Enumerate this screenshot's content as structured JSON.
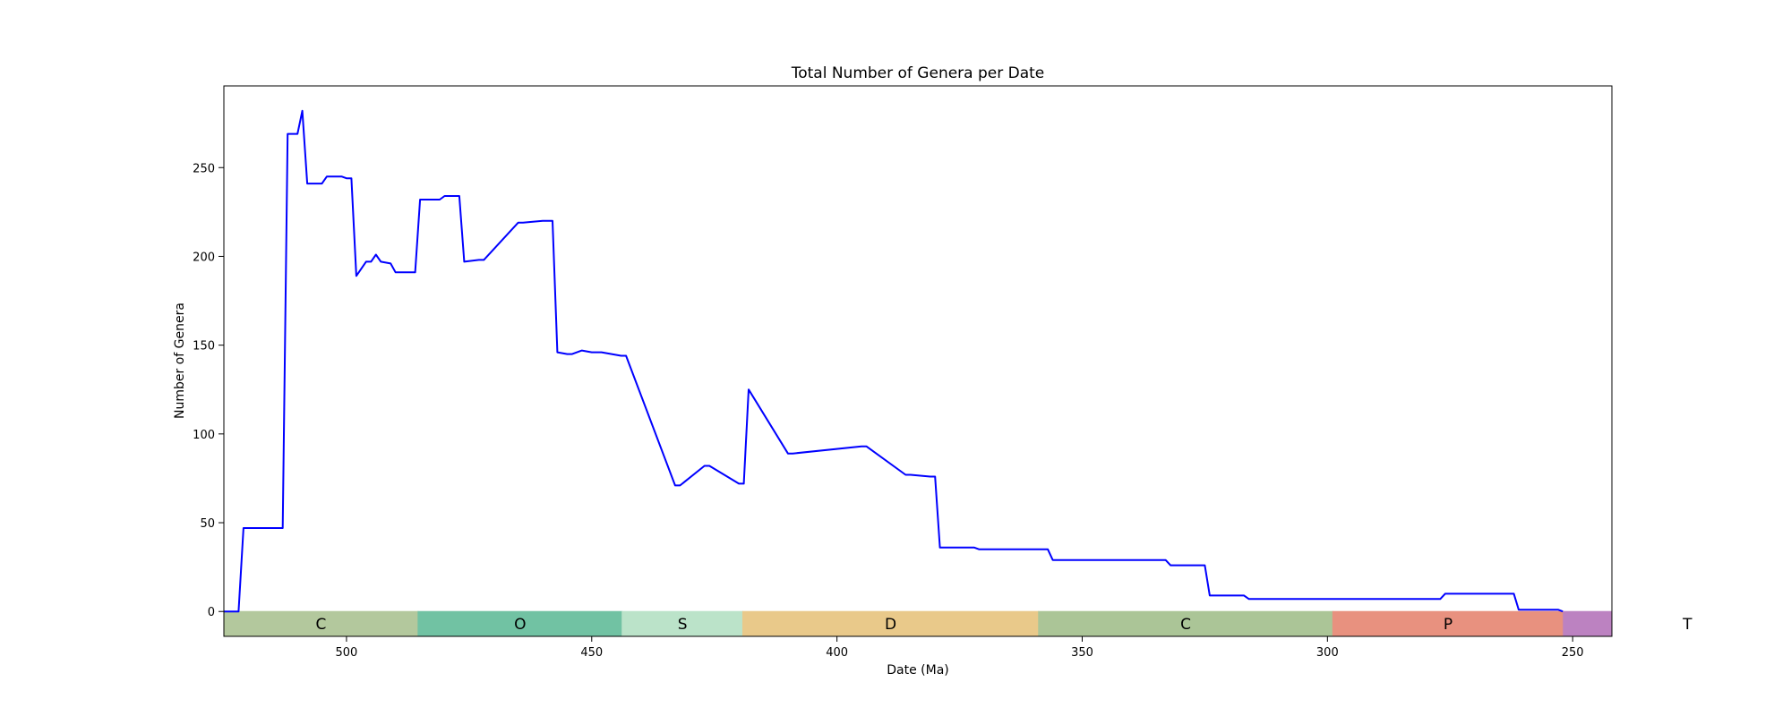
{
  "chart_data": {
    "type": "line",
    "title": "Total Number of Genera per Date",
    "xlabel": "Date (Ma)",
    "ylabel": "Number of Genera",
    "xlim": [
      525,
      242
    ],
    "ylim": [
      -14,
      296
    ],
    "x_ticks": [
      500,
      450,
      400,
      350,
      300,
      250
    ],
    "y_ticks": [
      0,
      50,
      100,
      150,
      200,
      250
    ],
    "grid": false,
    "legend": "none",
    "line_color": "#0000ff",
    "series": [
      {
        "x": [
          525,
          522,
          521,
          513,
          512,
          510,
          509,
          508,
          505,
          504,
          501,
          500,
          499,
          498,
          496,
          495,
          494,
          493,
          491,
          490,
          486,
          485,
          481,
          480,
          477,
          476,
          473,
          472,
          465,
          464,
          460,
          459,
          458,
          457,
          455,
          454,
          452,
          450,
          449,
          448,
          444,
          443,
          433,
          432,
          427,
          426,
          420,
          419,
          418,
          410,
          409,
          395,
          394,
          386,
          385,
          381,
          380,
          379,
          372,
          371,
          357,
          356,
          333,
          332,
          325,
          324,
          317,
          316,
          277,
          276,
          262,
          261,
          253,
          252
        ],
        "y": [
          0,
          0,
          47,
          47,
          269,
          269,
          282,
          241,
          241,
          245,
          245,
          244,
          244,
          189,
          197,
          197,
          201,
          197,
          196,
          191,
          191,
          232,
          232,
          234,
          234,
          197,
          198,
          198,
          219,
          219,
          220,
          220,
          220,
          146,
          145,
          145,
          147,
          146,
          146,
          146,
          144,
          144,
          71,
          71,
          82,
          82,
          72,
          72,
          125,
          89,
          89,
          93,
          93,
          77,
          77,
          76,
          76,
          36,
          36,
          35,
          35,
          29,
          29,
          26,
          26,
          9,
          9,
          7,
          7,
          10,
          10,
          1,
          1,
          0
        ]
      }
    ],
    "periods": [
      {
        "label": "C",
        "start": 541,
        "end": 485.4,
        "color": "#b3c89d"
      },
      {
        "label": "O",
        "start": 485.4,
        "end": 443.8,
        "color": "#71c2a3"
      },
      {
        "label": "S",
        "start": 443.8,
        "end": 419.2,
        "color": "#bbe3c9"
      },
      {
        "label": "D",
        "start": 419.2,
        "end": 358.9,
        "color": "#e9c98a"
      },
      {
        "label": "C",
        "start": 358.9,
        "end": 298.9,
        "color": "#abc597"
      },
      {
        "label": "P",
        "start": 298.9,
        "end": 251.9,
        "color": "#e8917f"
      },
      {
        "label": "T",
        "start": 251.9,
        "end": 201.3,
        "color": "#bc82c1"
      }
    ]
  }
}
